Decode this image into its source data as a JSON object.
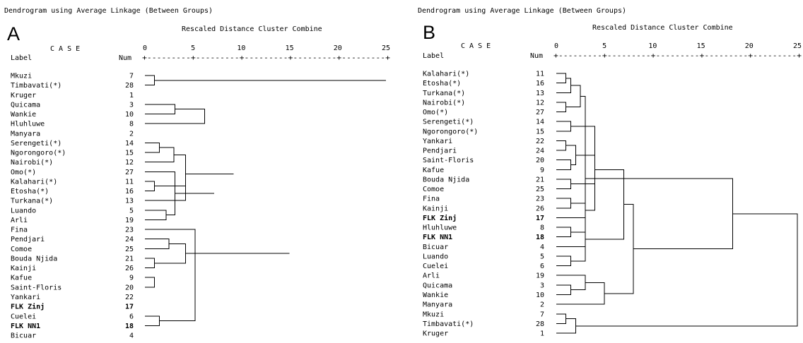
{
  "panels": [
    {
      "letter": "A",
      "title": "Dendrogram using Average Linkage (Between Groups)",
      "subtitle": "Rescaled Distance Cluster Combine",
      "case_label": "C A S E",
      "label_header": "Label",
      "num_header": "Num",
      "axis_ruler": "+---------+---------+---------+---------+---------+",
      "ticks": [
        "0",
        "5",
        "10",
        "15",
        "20",
        "25"
      ],
      "leaves": [
        {
          "label": "Mkuzi",
          "num": "7"
        },
        {
          "label": "Timbavati(*)",
          "num": "28"
        },
        {
          "label": "Kruger",
          "num": "1"
        },
        {
          "label": "Quicama",
          "num": "3"
        },
        {
          "label": "Wankie",
          "num": "10"
        },
        {
          "label": "Hluhluwe",
          "num": "8"
        },
        {
          "label": "Manyara",
          "num": "2"
        },
        {
          "label": "Serengeti(*)",
          "num": "14"
        },
        {
          "label": "Ngorongoro(*)",
          "num": "15"
        },
        {
          "label": "Nairobi(*)",
          "num": "12"
        },
        {
          "label": "Omo(*)",
          "num": "27"
        },
        {
          "label": "Kalahari(*)",
          "num": "11"
        },
        {
          "label": "Etosha(*)",
          "num": "16"
        },
        {
          "label": "Turkana(*)",
          "num": "13"
        },
        {
          "label": "Luando",
          "num": "5"
        },
        {
          "label": "Arli",
          "num": "19"
        },
        {
          "label": "Fina",
          "num": "23"
        },
        {
          "label": "Pendjari",
          "num": "24"
        },
        {
          "label": "Comoe",
          "num": "25"
        },
        {
          "label": "Bouda Njida",
          "num": "21"
        },
        {
          "label": "Kainji",
          "num": "26"
        },
        {
          "label": "Kafue",
          "num": "9"
        },
        {
          "label": "Saint-Floris",
          "num": "20"
        },
        {
          "label": "Yankari",
          "num": "22"
        },
        {
          "label": "FLK Zinj",
          "num": "17",
          "bold": true
        },
        {
          "label": "Cuelei",
          "num": "6"
        },
        {
          "label": "FLK NN1",
          "num": "18",
          "bold": true
        },
        {
          "label": "Bicuar",
          "num": "4"
        }
      ]
    },
    {
      "letter": "B",
      "title": "Dendrogram using Average Linkage (Between Groups)",
      "subtitle": "Rescaled Distance Cluster Combine",
      "case_label": "C A S E",
      "label_header": "Label",
      "num_header": "Num",
      "axis_ruler": "+---------+---------+---------+---------+---------+",
      "ticks": [
        "0",
        "5",
        "10",
        "15",
        "20",
        "25"
      ],
      "leaves": [
        {
          "label": "Kalahari(*)",
          "num": "11"
        },
        {
          "label": "Etosha(*)",
          "num": "16"
        },
        {
          "label": "Turkana(*)",
          "num": "13"
        },
        {
          "label": "Nairobi(*)",
          "num": "12"
        },
        {
          "label": "Omo(*)",
          "num": "27"
        },
        {
          "label": "Serengeti(*)",
          "num": "14"
        },
        {
          "label": "Ngorongoro(*)",
          "num": "15"
        },
        {
          "label": "Yankari",
          "num": "22"
        },
        {
          "label": "Pendjari",
          "num": "24"
        },
        {
          "label": "Saint-Floris",
          "num": "20"
        },
        {
          "label": "Kafue",
          "num": "9"
        },
        {
          "label": "Bouda Njida",
          "num": "21"
        },
        {
          "label": "Comoe",
          "num": "25"
        },
        {
          "label": "Fina",
          "num": "23"
        },
        {
          "label": "Kainji",
          "num": "26"
        },
        {
          "label": "FLK Zinj",
          "num": "17",
          "bold": true
        },
        {
          "label": "Hluhluwe",
          "num": "8"
        },
        {
          "label": "FLK NN1",
          "num": "18",
          "bold": true
        },
        {
          "label": "Bicuar",
          "num": "4"
        },
        {
          "label": "Luando",
          "num": "5"
        },
        {
          "label": "Cuelei",
          "num": "6"
        },
        {
          "label": "Arli",
          "num": "19"
        },
        {
          "label": "Quicama",
          "num": "3"
        },
        {
          "label": "Wankie",
          "num": "10"
        },
        {
          "label": "Manyara",
          "num": "2"
        },
        {
          "label": "Mkuzi",
          "num": "7"
        },
        {
          "label": "Timbavati(*)",
          "num": "28"
        },
        {
          "label": "Kruger",
          "num": "1"
        }
      ]
    }
  ],
  "chart_data": [
    {
      "type": "dendrogram",
      "title": "Dendrogram using Average Linkage (Between Groups)",
      "panel": "A",
      "xlabel": "Rescaled Distance Cluster Combine",
      "xlim": [
        0,
        25
      ],
      "ticks": [
        0,
        5,
        10,
        15,
        20,
        25
      ],
      "merges": [
        {
          "a": 0,
          "b": 1,
          "d": 1.0
        },
        {
          "a": 11,
          "b": 12,
          "d": 1.0
        },
        {
          "a": 19,
          "b": 20,
          "d": 1.0
        },
        {
          "a": 22,
          "b": 21,
          "d": 1.0
        },
        {
          "a": 7,
          "b": 8,
          "d": 1.5
        },
        {
          "a": 25,
          "b": 26,
          "d": 1.5
        },
        {
          "a": 14,
          "b": 15,
          "d": 2.2
        },
        {
          "a": 17,
          "b": 18,
          "d": 2.5
        },
        {
          "a": 32,
          "b": 9,
          "d": 3.0
        },
        {
          "a": 3,
          "b": 4,
          "d": 3.1
        },
        {
          "a": 34,
          "b": 10,
          "d": 3.1
        },
        {
          "a": 29,
          "b": 13,
          "d": 4.2
        },
        {
          "a": 35,
          "b": 30,
          "d": 4.2
        },
        {
          "a": 43,
          "b": 31,
          "d": 4.2
        },
        {
          "a": 44,
          "b": 24,
          "d": 4.2
        },
        {
          "a": 33,
          "b": 16,
          "d": 5.2
        },
        {
          "a": 37,
          "b": 5,
          "d": 6.2
        },
        {
          "a": 38,
          "b": 39,
          "d": 7.2
        },
        {
          "a": 42,
          "b": 6,
          "d": 8.2
        },
        {
          "a": 45,
          "b": 36,
          "d": 4.2
        },
        {
          "a": 47,
          "b": 46,
          "d": 9.2
        },
        {
          "a": 48,
          "b": 41,
          "d": 12.2
        },
        {
          "a": 40,
          "b": 49,
          "d": 15.0
        },
        {
          "a": 28,
          "b": 50,
          "d": 25.0
        },
        {
          "a": 52,
          "b": 2,
          "d": 25.0
        }
      ]
    },
    {
      "type": "dendrogram",
      "title": "Dendrogram using Average Linkage (Between Groups)",
      "panel": "B",
      "xlabel": "Rescaled Distance Cluster Combine",
      "xlim": [
        0,
        25
      ],
      "ticks": [
        0,
        5,
        10,
        15,
        20,
        25
      ],
      "merges": [
        {
          "a": 0,
          "b": 1,
          "d": 1.0
        },
        {
          "a": 25,
          "b": 26,
          "d": 1.0
        },
        {
          "a": 3,
          "b": 4,
          "d": 1.0
        },
        {
          "a": 7,
          "b": 8,
          "d": 1.0
        },
        {
          "a": 28,
          "b": 2,
          "d": 1.5
        },
        {
          "a": 9,
          "b": 10,
          "d": 1.5
        },
        {
          "a": 11,
          "b": 12,
          "d": 1.5
        },
        {
          "a": 13,
          "b": 14,
          "d": 1.5
        },
        {
          "a": 16,
          "b": 17,
          "d": 1.5
        },
        {
          "a": 19,
          "b": 20,
          "d": 1.5
        },
        {
          "a": 22,
          "b": 23,
          "d": 1.5
        },
        {
          "a": 5,
          "b": 6,
          "d": 1.5
        },
        {
          "a": 32,
          "b": 30,
          "d": 2.5
        },
        {
          "a": 33,
          "b": 31,
          "d": 2.0
        },
        {
          "a": 40,
          "b": 37,
          "d": 3.0
        },
        {
          "a": 35,
          "b": 15,
          "d": 3.0
        },
        {
          "a": 36,
          "b": 18,
          "d": 3.0
        },
        {
          "a": 41,
          "b": 34,
          "d": 4.0
        },
        {
          "a": 43,
          "b": 39,
          "d": 4.0
        },
        {
          "a": 44,
          "b": 45,
          "d": 7.0
        },
        {
          "a": 38,
          "b": 21,
          "d": 3.0
        },
        {
          "a": 48,
          "b": 24,
          "d": 5.0
        },
        {
          "a": 47,
          "b": 49,
          "d": 8.0
        },
        {
          "a": 42,
          "b": 50,
          "d": 18.3
        },
        {
          "a": 29,
          "b": 27,
          "d": 2.0
        },
        {
          "a": 51,
          "b": 52,
          "d": 25.0
        }
      ]
    }
  ]
}
